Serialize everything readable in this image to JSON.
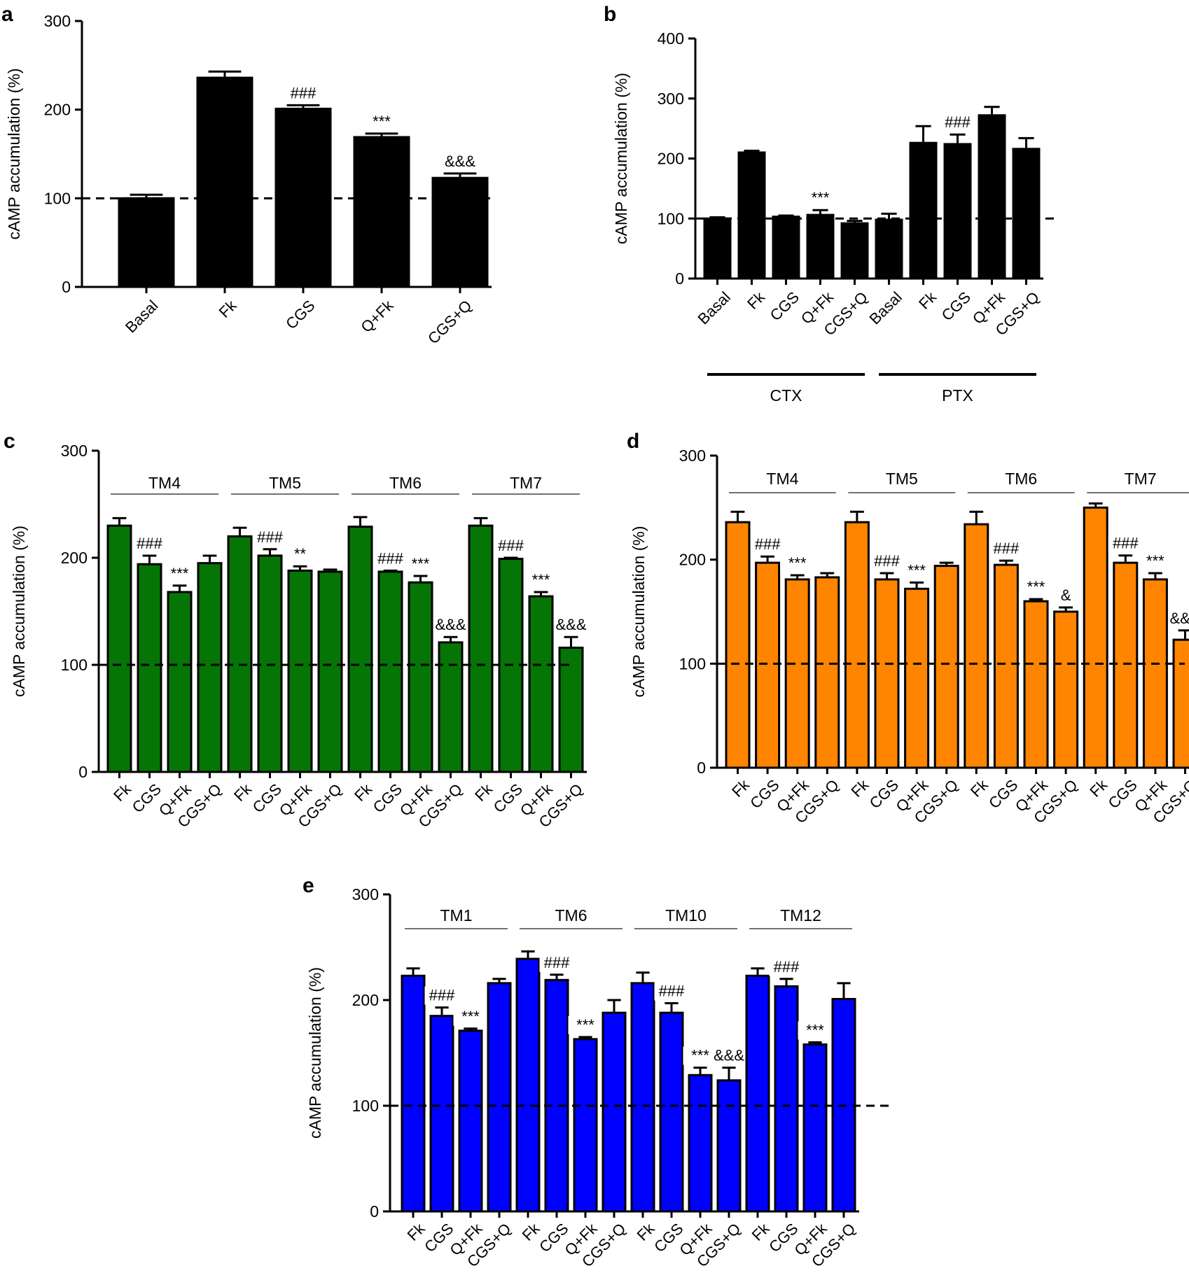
{
  "chart_data": [
    {
      "panel": "a",
      "type": "bar",
      "ylabel": "cAMP accumulation (%)",
      "ylim": [
        0,
        300
      ],
      "yticks": [
        0,
        100,
        200,
        300
      ],
      "baseline": 100,
      "bar_color": "#000000",
      "categories": [
        "Basal",
        "Fk",
        "CGS",
        "Q+Fk",
        "CGS+Q"
      ],
      "values": [
        100,
        236,
        201,
        169,
        123
      ],
      "errors": [
        4,
        7,
        4,
        4,
        5
      ],
      "annotations": [
        "",
        "",
        "###",
        "***",
        "&&&"
      ],
      "groups": []
    },
    {
      "panel": "b",
      "type": "bar",
      "ylabel": "cAMP accumulation (%)",
      "ylim": [
        0,
        400
      ],
      "yticks": [
        0,
        100,
        200,
        300,
        400
      ],
      "baseline": 100,
      "bar_color": "#000000",
      "categories": [
        "Basal",
        "Fk",
        "CGS",
        "Q+Fk",
        "CGS+Q",
        "Basal",
        "Fk",
        "CGS",
        "Q+Fk",
        "CGS+Q"
      ],
      "values": [
        100,
        210,
        103,
        106,
        92,
        98,
        226,
        224,
        272,
        216
      ],
      "errors": [
        2,
        3,
        2,
        8,
        4,
        10,
        28,
        16,
        14,
        18
      ],
      "annotations": [
        "",
        "",
        "",
        "***",
        "",
        "",
        "",
        "###",
        "",
        ""
      ],
      "groups": [
        {
          "label": "CTX",
          "start": 0,
          "end": 4
        },
        {
          "label": "PTX",
          "start": 5,
          "end": 9
        }
      ]
    },
    {
      "panel": "c",
      "type": "bar",
      "ylabel": "cAMP accumulation (%)",
      "ylim": [
        0,
        300
      ],
      "yticks": [
        0,
        100,
        200,
        300
      ],
      "baseline": 100,
      "bar_color": "#057505",
      "categories": [
        "Fk",
        "CGS",
        "Q+Fk",
        "CGS+Q",
        "Fk",
        "CGS",
        "Q+Fk",
        "CGS+Q",
        "Fk",
        "CGS",
        "Q+Fk",
        "CGS+Q",
        "Fk",
        "CGS",
        "Q+Fk",
        "CGS+Q"
      ],
      "values": [
        230,
        194,
        168,
        195,
        220,
        202,
        188,
        187,
        229,
        187,
        177,
        121,
        230,
        199,
        164,
        116
      ],
      "errors": [
        7,
        8,
        6,
        7,
        8,
        6,
        4,
        2,
        9,
        1,
        6,
        5,
        7,
        1,
        4,
        10
      ],
      "annotations": [
        "",
        "###",
        "***",
        "",
        "",
        "###",
        "**",
        "",
        "",
        "###",
        "***",
        "&&&",
        "",
        "###",
        "***",
        "&&&"
      ],
      "groups": [
        {
          "label": "TM4",
          "start": 0,
          "end": 3
        },
        {
          "label": "TM5",
          "start": 4,
          "end": 7
        },
        {
          "label": "TM6",
          "start": 8,
          "end": 11
        },
        {
          "label": "TM7",
          "start": 12,
          "end": 15
        }
      ]
    },
    {
      "panel": "d",
      "type": "bar",
      "ylabel": "cAMP accumulation (%)",
      "ylim": [
        0,
        300
      ],
      "yticks": [
        0,
        100,
        200,
        300
      ],
      "baseline": 100,
      "bar_color": "#ff8500",
      "categories": [
        "Fk",
        "CGS",
        "Q+Fk",
        "CGS+Q",
        "Fk",
        "CGS",
        "Q+Fk",
        "CGS+Q",
        "Fk",
        "CGS",
        "Q+Fk",
        "CGS+Q",
        "Fk",
        "CGS",
        "Q+Fk",
        "CGS+Q"
      ],
      "values": [
        236,
        197,
        181,
        183,
        236,
        181,
        172,
        194,
        234,
        195,
        160,
        150,
        250,
        197,
        181,
        123
      ],
      "errors": [
        10,
        6,
        4,
        4,
        10,
        6,
        6,
        3,
        12,
        4,
        2,
        4,
        4,
        7,
        6,
        9
      ],
      "annotations": [
        "",
        "###",
        "***",
        "",
        "",
        "###",
        "***",
        "",
        "",
        "###",
        "***",
        "&",
        "",
        "###",
        "***",
        "&&&"
      ],
      "groups": [
        {
          "label": "TM4",
          "start": 0,
          "end": 3
        },
        {
          "label": "TM5",
          "start": 4,
          "end": 7
        },
        {
          "label": "TM6",
          "start": 8,
          "end": 11
        },
        {
          "label": "TM7",
          "start": 12,
          "end": 15
        }
      ]
    },
    {
      "panel": "e",
      "type": "bar",
      "ylabel": "cAMP accumulation (%)",
      "ylim": [
        0,
        300
      ],
      "yticks": [
        0,
        100,
        200,
        300
      ],
      "baseline": 100,
      "bar_color": "#0000ff",
      "categories": [
        "Fk",
        "CGS",
        "Q+Fk",
        "CGS+Q",
        "Fk",
        "CGS",
        "Q+Fk",
        "CGS+Q",
        "Fk",
        "CGS",
        "Q+Fk",
        "CGS+Q",
        "Fk",
        "CGS",
        "Q+Fk",
        "CGS+Q"
      ],
      "values": [
        223,
        185,
        171,
        216,
        239,
        219,
        163,
        188,
        216,
        188,
        129,
        124,
        223,
        213,
        158,
        201
      ],
      "errors": [
        7,
        8,
        2,
        4,
        7,
        5,
        2,
        12,
        10,
        9,
        7,
        12,
        7,
        7,
        2,
        15
      ],
      "annotations": [
        "",
        "###",
        "***",
        "",
        "",
        "###",
        "***",
        "",
        "",
        "###",
        "***",
        "&&&",
        "",
        "###",
        "***",
        ""
      ],
      "groups": [
        {
          "label": "TM1",
          "start": 0,
          "end": 3
        },
        {
          "label": "TM6",
          "start": 4,
          "end": 7
        },
        {
          "label": "TM10",
          "start": 8,
          "end": 11
        },
        {
          "label": "TM12",
          "start": 12,
          "end": 15
        }
      ]
    }
  ]
}
